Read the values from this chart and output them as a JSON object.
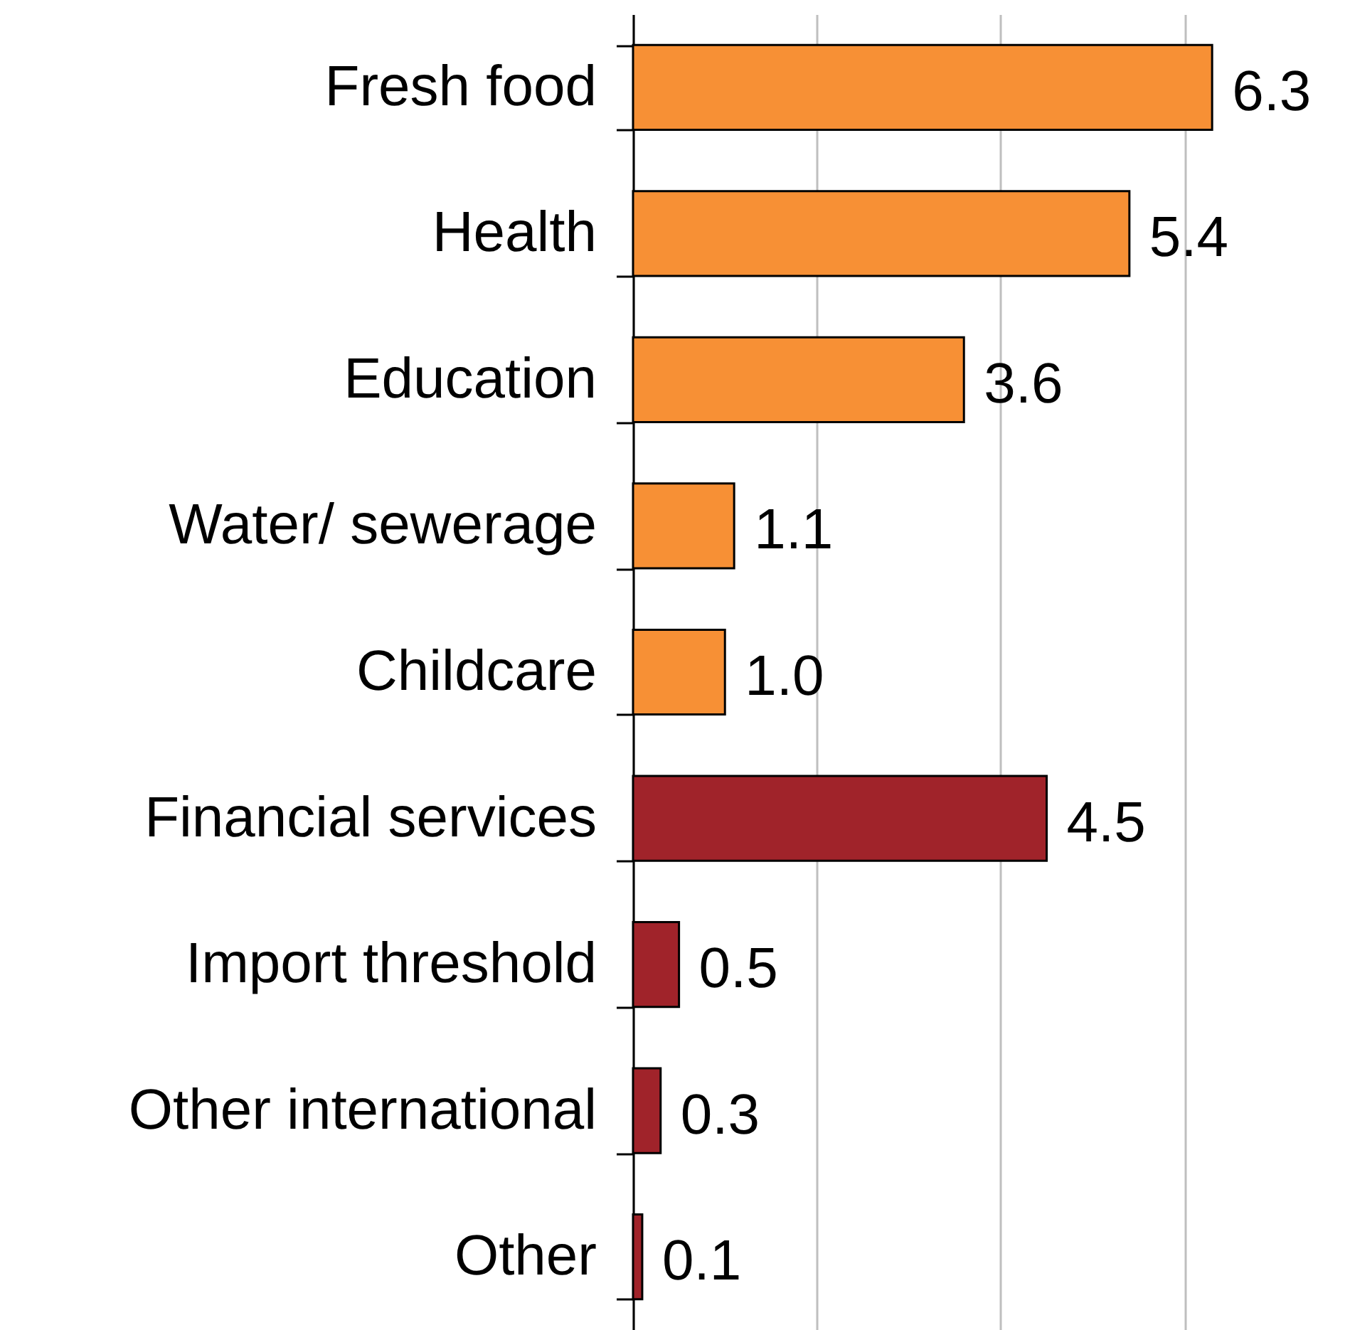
{
  "chart_data": {
    "type": "bar",
    "orientation": "horizontal",
    "categories": [
      "Fresh food",
      "Health",
      "Education",
      "Water/ sewerage",
      "Childcare ",
      "Financial services",
      "Import threshold",
      "Other international",
      "Other"
    ],
    "values": [
      6.3,
      5.4,
      3.6,
      1.1,
      1.0,
      4.5,
      0.5,
      0.3,
      0.1
    ],
    "value_labels": [
      "6.3",
      "5.4",
      "3.6",
      "1.1",
      "1.0",
      "4.5",
      "0.5",
      "0.3",
      "0.1"
    ],
    "colors": [
      "#f79035",
      "#f79035",
      "#f79035",
      "#f79035",
      "#f79035",
      "#a0232a",
      "#a0232a",
      "#a0232a",
      "#a0232a"
    ],
    "xlim": [
      0,
      7.8
    ],
    "xticks": [
      {
        "value": 0,
        "label": null
      },
      {
        "value": 2,
        "label": null
      },
      {
        "value": 4,
        "label": null
      },
      {
        "value": 6,
        "label": null
      }
    ],
    "grid": "x",
    "tick_labels": "y"
  }
}
